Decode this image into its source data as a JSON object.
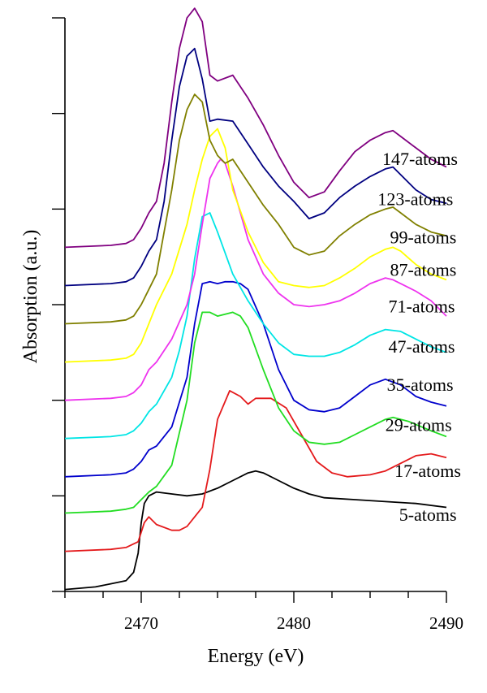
{
  "chart_data": {
    "type": "line",
    "xlabel": "Energy (eV)",
    "ylabel": "Absorption (a.u.)",
    "xlim": [
      2465,
      2490
    ],
    "ylim": [
      0,
      15
    ],
    "x_ticks": [
      2470,
      2480,
      2490
    ],
    "y_ticks": [
      0,
      2.5,
      5,
      7.5,
      10,
      12.5,
      15
    ],
    "y_tick_labels_shown": false,
    "grid": false,
    "legend": "inline labels at right end of each curve",
    "series": [
      {
        "name": "5-atoms",
        "color": "#000000",
        "x": [
          2465.0,
          2467.0,
          2468.0,
          2469.0,
          2469.5,
          2469.8,
          2470.0,
          2470.2,
          2470.5,
          2471.0,
          2472.0,
          2473.0,
          2474.0,
          2475.0,
          2476.0,
          2477.0,
          2477.5,
          2478.0,
          2479.0,
          2480.0,
          2481.0,
          2482.0,
          2484.0,
          2486.0,
          2488.0,
          2490.0
        ],
        "y": [
          0.05,
          0.12,
          0.2,
          0.28,
          0.5,
          1.0,
          1.8,
          2.3,
          2.5,
          2.6,
          2.55,
          2.5,
          2.55,
          2.7,
          2.9,
          3.1,
          3.15,
          3.1,
          2.9,
          2.7,
          2.55,
          2.45,
          2.4,
          2.35,
          2.3,
          2.2
        ]
      },
      {
        "name": "17-atoms",
        "color": "#e41a1c",
        "x": [
          2465.0,
          2468.0,
          2469.0,
          2469.8,
          2470.2,
          2470.5,
          2471.0,
          2472.0,
          2472.5,
          2473.0,
          2474.0,
          2474.5,
          2475.0,
          2475.8,
          2476.5,
          2477.0,
          2477.5,
          2478.5,
          2479.5,
          2480.5,
          2481.5,
          2482.5,
          2483.5,
          2485.0,
          2486.0,
          2487.0,
          2488.0,
          2489.0,
          2490.0
        ],
        "y": [
          1.05,
          1.1,
          1.15,
          1.3,
          1.8,
          1.95,
          1.75,
          1.6,
          1.6,
          1.7,
          2.2,
          3.2,
          4.5,
          5.25,
          5.1,
          4.9,
          5.05,
          5.05,
          4.8,
          4.1,
          3.4,
          3.1,
          3.0,
          3.05,
          3.15,
          3.35,
          3.55,
          3.6,
          3.5
        ]
      },
      {
        "name": "29-atoms",
        "color": "#22dd22",
        "x": [
          2465.0,
          2468.0,
          2469.0,
          2469.5,
          2470.0,
          2470.5,
          2471.0,
          2472.0,
          2473.0,
          2473.5,
          2474.0,
          2474.5,
          2475.0,
          2475.5,
          2476.0,
          2476.5,
          2477.0,
          2478.0,
          2479.0,
          2480.0,
          2481.0,
          2482.0,
          2483.0,
          2484.0,
          2485.0,
          2486.0,
          2486.5,
          2487.5,
          2489.0,
          2490.0
        ],
        "y": [
          2.05,
          2.1,
          2.15,
          2.2,
          2.4,
          2.6,
          2.75,
          3.3,
          5.0,
          6.5,
          7.3,
          7.3,
          7.2,
          7.25,
          7.3,
          7.2,
          6.9,
          5.8,
          4.8,
          4.2,
          3.9,
          3.85,
          3.9,
          4.1,
          4.3,
          4.5,
          4.55,
          4.45,
          4.2,
          4.05
        ]
      },
      {
        "name": "35-atoms",
        "color": "#0000cc",
        "x": [
          2465.0,
          2468.0,
          2469.0,
          2469.5,
          2470.0,
          2470.5,
          2471.0,
          2472.0,
          2473.0,
          2473.5,
          2474.0,
          2474.5,
          2475.0,
          2475.5,
          2476.0,
          2476.5,
          2477.0,
          2478.0,
          2479.0,
          2480.0,
          2481.0,
          2482.0,
          2483.0,
          2484.0,
          2485.0,
          2486.0,
          2487.0,
          2488.0,
          2489.0,
          2490.0
        ],
        "y": [
          3.0,
          3.05,
          3.1,
          3.2,
          3.4,
          3.7,
          3.8,
          4.3,
          5.6,
          7.0,
          8.05,
          8.1,
          8.05,
          8.1,
          8.1,
          8.05,
          7.9,
          7.0,
          5.8,
          5.0,
          4.75,
          4.7,
          4.8,
          5.1,
          5.4,
          5.55,
          5.4,
          5.1,
          4.95,
          4.85
        ]
      },
      {
        "name": "47-atoms",
        "color": "#00e5e5",
        "x": [
          2465.0,
          2468.0,
          2469.0,
          2469.5,
          2470.0,
          2470.5,
          2471.0,
          2472.0,
          2472.5,
          2473.0,
          2473.5,
          2474.0,
          2474.5,
          2475.0,
          2476.0,
          2477.0,
          2478.0,
          2479.0,
          2480.0,
          2481.0,
          2482.0,
          2483.0,
          2484.0,
          2485.0,
          2486.0,
          2487.0,
          2488.0,
          2489.0,
          2490.0
        ],
        "y": [
          4.0,
          4.05,
          4.1,
          4.2,
          4.4,
          4.7,
          4.9,
          5.6,
          6.3,
          7.2,
          8.7,
          9.8,
          9.9,
          9.4,
          8.3,
          7.6,
          7.0,
          6.5,
          6.2,
          6.15,
          6.15,
          6.25,
          6.45,
          6.7,
          6.85,
          6.8,
          6.6,
          6.4,
          6.25
        ]
      },
      {
        "name": "71-atoms",
        "color": "#ee33ee",
        "x": [
          2465.0,
          2468.0,
          2469.0,
          2469.5,
          2470.0,
          2470.5,
          2471.0,
          2472.0,
          2473.0,
          2473.5,
          2474.0,
          2474.5,
          2475.0,
          2475.2,
          2475.5,
          2476.0,
          2477.0,
          2478.0,
          2479.0,
          2480.0,
          2481.0,
          2482.0,
          2483.0,
          2484.0,
          2485.0,
          2486.0,
          2486.5,
          2487.0,
          2488.0,
          2489.0,
          2490.0
        ],
        "y": [
          5.0,
          5.05,
          5.1,
          5.2,
          5.4,
          5.8,
          6.0,
          6.6,
          7.5,
          8.3,
          9.6,
          10.8,
          11.2,
          11.3,
          11.2,
          10.6,
          9.2,
          8.3,
          7.8,
          7.5,
          7.45,
          7.5,
          7.6,
          7.8,
          8.05,
          8.2,
          8.15,
          8.05,
          7.85,
          7.6,
          7.2
        ]
      },
      {
        "name": "87-atoms",
        "color": "#ffff00",
        "x": [
          2465.0,
          2468.0,
          2469.0,
          2469.5,
          2470.0,
          2470.5,
          2471.0,
          2472.0,
          2473.0,
          2473.5,
          2474.0,
          2474.5,
          2475.0,
          2475.5,
          2476.0,
          2477.0,
          2478.0,
          2479.0,
          2480.0,
          2481.0,
          2482.0,
          2483.0,
          2484.0,
          2485.0,
          2486.0,
          2486.5,
          2487.0,
          2488.0,
          2489.0,
          2490.0
        ],
        "y": [
          6.0,
          6.05,
          6.1,
          6.2,
          6.5,
          7.0,
          7.5,
          8.3,
          9.6,
          10.5,
          11.3,
          11.9,
          12.1,
          11.6,
          10.5,
          9.4,
          8.6,
          8.1,
          8.0,
          7.95,
          8.0,
          8.2,
          8.45,
          8.75,
          8.95,
          9.0,
          8.9,
          8.55,
          8.3,
          8.15
        ]
      },
      {
        "name": "99-atoms",
        "color": "#808000",
        "x": [
          2465.0,
          2468.0,
          2469.0,
          2469.5,
          2470.0,
          2470.5,
          2471.0,
          2472.0,
          2472.5,
          2473.0,
          2473.5,
          2474.0,
          2474.5,
          2475.0,
          2475.5,
          2476.0,
          2477.0,
          2478.0,
          2479.0,
          2480.0,
          2481.0,
          2482.0,
          2483.0,
          2484.0,
          2485.0,
          2486.0,
          2486.5,
          2487.0,
          2488.0,
          2489.0,
          2490.0
        ],
        "y": [
          7.0,
          7.05,
          7.1,
          7.2,
          7.5,
          7.9,
          8.3,
          10.5,
          11.8,
          12.6,
          13.0,
          12.8,
          11.8,
          11.4,
          11.2,
          11.3,
          10.7,
          10.1,
          9.6,
          9.0,
          8.8,
          8.9,
          9.3,
          9.6,
          9.85,
          10.0,
          10.05,
          9.9,
          9.6,
          9.4,
          9.3
        ]
      },
      {
        "name": "123-atoms",
        "color": "#000080",
        "x": [
          2465.0,
          2468.0,
          2469.0,
          2469.5,
          2470.0,
          2470.5,
          2471.0,
          2471.5,
          2472.0,
          2472.5,
          2473.0,
          2473.5,
          2474.0,
          2474.5,
          2475.0,
          2476.0,
          2477.0,
          2478.0,
          2479.0,
          2480.0,
          2481.0,
          2482.0,
          2483.0,
          2484.0,
          2485.0,
          2486.0,
          2486.5,
          2487.0,
          2488.0,
          2489.0,
          2490.0
        ],
        "y": [
          8.0,
          8.05,
          8.1,
          8.2,
          8.5,
          8.9,
          9.2,
          10.2,
          11.8,
          13.2,
          14.0,
          14.2,
          13.4,
          12.3,
          12.35,
          12.3,
          11.7,
          11.1,
          10.6,
          10.2,
          9.75,
          9.9,
          10.3,
          10.6,
          10.85,
          11.05,
          11.1,
          10.9,
          10.5,
          10.25,
          10.15
        ]
      },
      {
        "name": "147-atoms",
        "color": "#800080",
        "x": [
          2465.0,
          2468.0,
          2469.0,
          2469.5,
          2470.0,
          2470.5,
          2471.0,
          2471.5,
          2472.0,
          2472.5,
          2473.0,
          2473.5,
          2474.0,
          2474.5,
          2475.0,
          2476.0,
          2477.0,
          2478.0,
          2479.0,
          2480.0,
          2481.0,
          2482.0,
          2483.0,
          2484.0,
          2485.0,
          2486.0,
          2486.5,
          2487.0,
          2488.0,
          2489.0,
          2490.0
        ],
        "y": [
          9.0,
          9.05,
          9.1,
          9.2,
          9.5,
          9.9,
          10.2,
          11.2,
          12.8,
          14.2,
          15.0,
          15.25,
          14.9,
          13.5,
          13.35,
          13.5,
          12.9,
          12.2,
          11.4,
          10.7,
          10.3,
          10.45,
          11.0,
          11.5,
          11.8,
          12.0,
          12.05,
          11.9,
          11.6,
          11.3,
          11.1
        ]
      }
    ],
    "series_label_positions": [
      {
        "name": "5-atoms",
        "x": 2486.9,
        "y": 1.85
      },
      {
        "name": "17-atoms",
        "x": 2486.6,
        "y": 3.0
      },
      {
        "name": "29-atoms",
        "x": 2486.0,
        "y": 4.2
      },
      {
        "name": "35-atoms",
        "x": 2486.1,
        "y": 5.25
      },
      {
        "name": "47-atoms",
        "x": 2486.2,
        "y": 6.25
      },
      {
        "name": "71-atoms",
        "x": 2486.2,
        "y": 7.3
      },
      {
        "name": "87-atoms",
        "x": 2486.3,
        "y": 8.25
      },
      {
        "name": "99-atoms",
        "x": 2486.3,
        "y": 9.1
      },
      {
        "name": "123-atoms",
        "x": 2485.5,
        "y": 10.1
      },
      {
        "name": "147-atoms",
        "x": 2485.8,
        "y": 11.15
      }
    ]
  }
}
